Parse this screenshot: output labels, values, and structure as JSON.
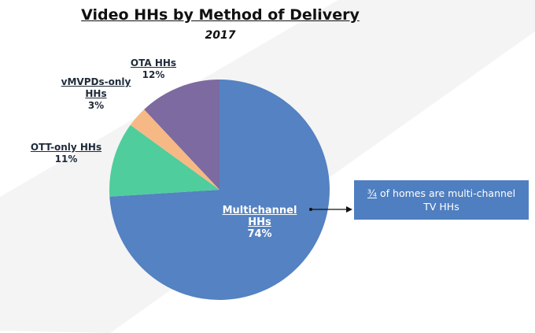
{
  "title": "Video HHs by Method of Delivery",
  "subtitle": "2017",
  "chart_data": {
    "type": "pie",
    "title": "Video HHs by Method of Delivery",
    "subtitle": "2017",
    "slices": [
      {
        "label_line1": "Multichannel",
        "label_line2": "HHs",
        "label": "Multichannel HHs",
        "value": 74,
        "value_text": "74%",
        "color": "#5482c2"
      },
      {
        "label_line1": "OTT-only HHs",
        "label_line2": "",
        "label": "OTT-only HHs",
        "value": 11,
        "value_text": "11%",
        "color": "#4fcd9c"
      },
      {
        "label_line1": "vMVPDs-only",
        "label_line2": "HHs",
        "label": "vMVPDs-only HHs",
        "value": 3,
        "value_text": "3%",
        "color": "#f6b985"
      },
      {
        "label_line1": "OTA HHs",
        "label_line2": "",
        "label": "OTA HHs",
        "value": 12,
        "value_text": "12%",
        "color": "#7c6aa1"
      }
    ],
    "order": "clockwise from 12 o'clock: Multichannel HHs, OTT-only HHs, vMVPDs-only HHs, OTA HHs"
  },
  "callout": {
    "fraction": "¾",
    "text_rest": " of homes are multi-channel",
    "text_line2": "TV HHs",
    "color": "#4f7fc0"
  }
}
